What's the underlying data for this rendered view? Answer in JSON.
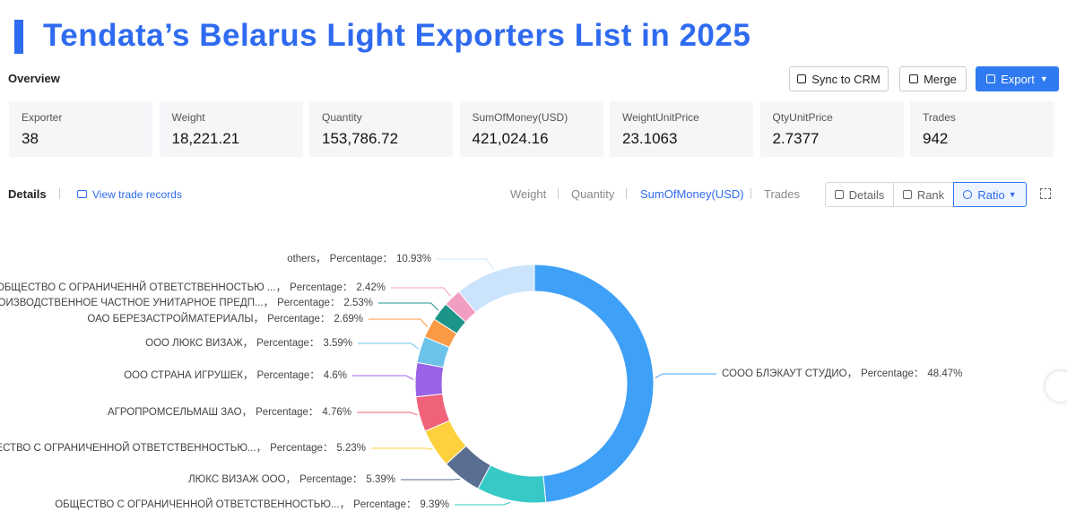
{
  "header": {
    "title": "Tendata’s Belarus Light Exporters List in 2025"
  },
  "overview": {
    "label": "Overview",
    "buttons": [
      "Sync to CRM",
      "Merge",
      "Export"
    ],
    "stats": [
      {
        "label": "Exporter",
        "value": "38"
      },
      {
        "label": "Weight",
        "value": "18,221.21"
      },
      {
        "label": "Quantity",
        "value": "153,786.72"
      },
      {
        "label": "SumOfMoney(USD)",
        "value": "421,024.16"
      },
      {
        "label": "WeightUnitPrice",
        "value": "23.1063"
      },
      {
        "label": "QtyUnitPrice",
        "value": "2.7377"
      },
      {
        "label": "Trades",
        "value": "942"
      }
    ]
  },
  "details": {
    "label": "Details",
    "link": "View trade records",
    "tabs": [
      "Weight",
      "Quantity",
      "SumOfMoney(USD)",
      "Trades"
    ],
    "views": [
      "Details",
      "Rank",
      "Ratio"
    ]
  },
  "chart_data": {
    "type": "donut",
    "categories": [
      "СООО БЛЭКАУТ СТУДИО",
      "ОБЩЕСТВО С ОГРАНИЧЕННОЙ ОТВЕТСТВЕННОСТЬЮ...",
      "ЛЮКС ВИЗАЖ ООО",
      "ОБЩЕСТВО С ОГРАНИЧЕННОЙ ОТВЕТСТВЕННОСТЬЮ...",
      "АГРОПРОМСЕЛЬМАШ ЗАО",
      "ООО СТРАНА ИГРУШЕК",
      "ООО ЛЮКС ВИЗАЖ",
      "ОАО БЕРЕЗАСТРОЙМАТЕРИАЛЫ",
      "ПРОИЗВОДСТВЕННОЕ ЧАСТНОЕ УНИТАРНОЕ ПРЕДП...",
      "ОБЩЕСТВО С ОГРАНИЧЕННЙ ОТВЕТСТВЕННОСТЬЮ ...",
      "others"
    ],
    "values": [
      48.47,
      9.39,
      5.39,
      5.23,
      4.76,
      4.6,
      3.59,
      2.69,
      2.53,
      2.42,
      10.93
    ],
    "value_labels": [
      "48.47%",
      "9.39%",
      "5.39%",
      "5.23%",
      "4.76%",
      "4.6%",
      "3.59%",
      "2.69%",
      "2.53%",
      "2.42%",
      "10.93%"
    ],
    "colors": [
      "#3fa0f7",
      "#36c9c6",
      "#5a6e91",
      "#fcd13d",
      "#f0617a",
      "#9a62e6",
      "#6bc3ea",
      "#fb9a45",
      "#1d9488",
      "#f19ec2",
      "#cce4fb"
    ],
    "value_caption": "Percentage",
    "name_separator": "，",
    "value_separator": "："
  }
}
